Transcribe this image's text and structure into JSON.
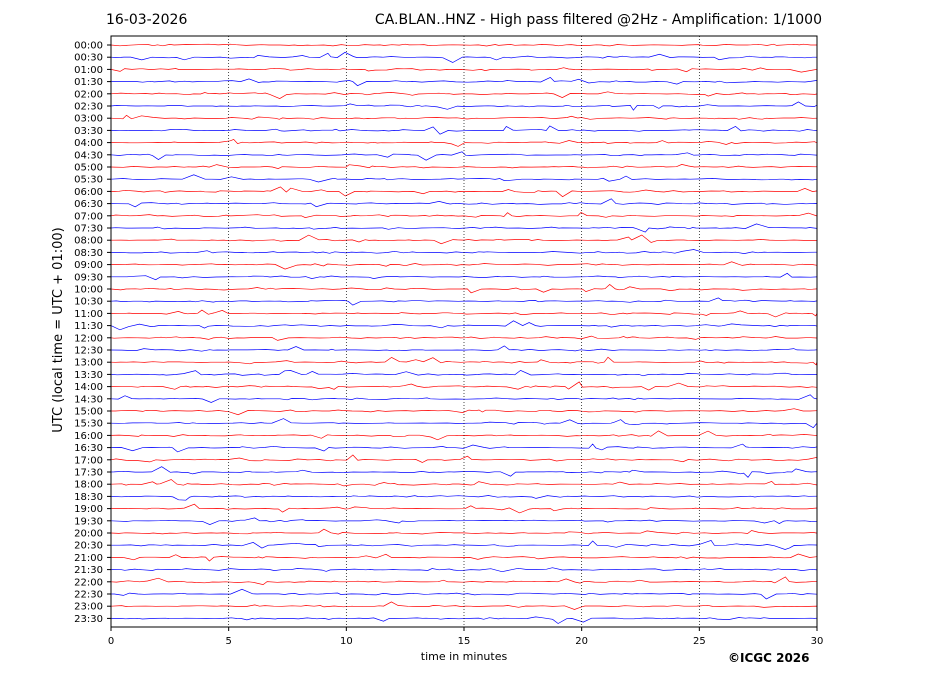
{
  "header": {
    "date": "16-03-2026",
    "title": "CA.BLAN..HNZ - High pass filtered @2Hz - Amplification: 1/1000"
  },
  "footer": {
    "copyright": "©ICGC 2026"
  },
  "colors": {
    "red_trace": "#ff0000",
    "blue_trace": "#0000ff",
    "frame": "#000000",
    "grid": "#000000"
  },
  "chart_data": {
    "type": "line",
    "title": "CA.BLAN..HNZ - High pass filtered @2Hz - Amplification: 1/1000",
    "xlabel": "time in minutes",
    "ylabel": "UTC (local time = UTC + 01:00)",
    "xlim": [
      0,
      30
    ],
    "x_ticks": [
      "0",
      "5",
      "10",
      "15",
      "20",
      "25",
      "30"
    ],
    "x_tick_values": [
      0,
      5,
      10,
      15,
      20,
      25,
      30
    ],
    "vertical_grid_at": [
      5,
      10,
      15,
      20,
      25
    ],
    "grid": "vertical dotted",
    "trace_colors": [
      "#ff0000",
      "#0000ff"
    ],
    "y_ticks": [
      "00:00",
      "00:30",
      "01:00",
      "01:30",
      "02:00",
      "02:30",
      "03:00",
      "03:30",
      "04:00",
      "04:30",
      "05:00",
      "05:30",
      "06:00",
      "06:30",
      "07:00",
      "07:30",
      "08:00",
      "08:30",
      "09:00",
      "09:30",
      "10:00",
      "10:30",
      "11:00",
      "11:30",
      "12:00",
      "12:30",
      "13:00",
      "13:30",
      "14:00",
      "14:30",
      "15:00",
      "15:30",
      "16:00",
      "16:30",
      "17:00",
      "17:30",
      "18:00",
      "18:30",
      "19:00",
      "19:30",
      "20:00",
      "20:30",
      "21:00",
      "21:30",
      "22:00",
      "22:30",
      "23:00",
      "23:30"
    ]
  }
}
